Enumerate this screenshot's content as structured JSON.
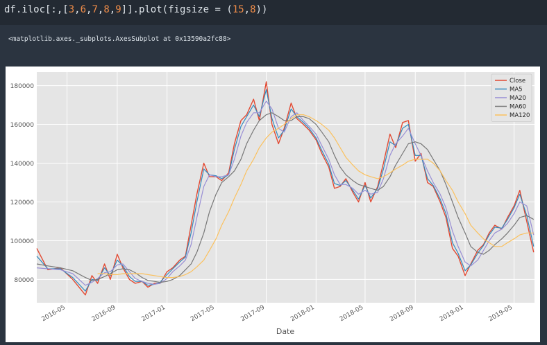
{
  "code_cell": {
    "prefix": "df.iloc[:,[",
    "numbers": [
      "3",
      "6",
      "7",
      "8",
      "9"
    ],
    "middle": "]].plot(figsize = (",
    "fig_w": "15",
    "fig_h": "8",
    "suffix": "))"
  },
  "output": {
    "repr": "<matplotlib.axes._subplots.AxesSubplot at 0x13590a2fc88>"
  },
  "colors": {
    "Close": "#e24a33",
    "MA5": "#348abd",
    "MA20": "#988ed5",
    "MA60": "#777777",
    "MA120": "#fbc15e",
    "axes_bg": "#e5e5e5",
    "grid": "#ffffff",
    "tick_text": "#555555"
  },
  "chart_data": {
    "type": "line",
    "xlabel": "Date",
    "ylabel": "",
    "x_ticks": [
      "2016-05",
      "2016-09",
      "2017-01",
      "2017-05",
      "2017-09",
      "2018-01",
      "2018-05",
      "2018-09",
      "2019-01",
      "2019-05"
    ],
    "xlim": [
      "2016-02-17",
      "2019-06-20"
    ],
    "y_ticks": [
      80000,
      100000,
      120000,
      140000,
      160000,
      180000
    ],
    "y_tick_labels": [
      "80000",
      "100000",
      "120000",
      "140000",
      "160000",
      "180000"
    ],
    "ylim": [
      68000,
      187000
    ],
    "grid": true,
    "legend_position": "top-right",
    "legend": [
      "Close",
      "MA5",
      "MA20",
      "MA60",
      "MA120"
    ],
    "x": [
      "2016-02-17",
      "2016-03-15",
      "2016-04-15",
      "2016-05-15",
      "2016-06-15",
      "2016-07-01",
      "2016-07-15",
      "2016-08-01",
      "2016-08-15",
      "2016-09-01",
      "2016-09-15",
      "2016-10-01",
      "2016-10-15",
      "2016-11-01",
      "2016-11-15",
      "2016-12-01",
      "2016-12-15",
      "2017-01-01",
      "2017-01-15",
      "2017-02-01",
      "2017-02-15",
      "2017-03-01",
      "2017-03-15",
      "2017-04-01",
      "2017-04-15",
      "2017-05-01",
      "2017-05-15",
      "2017-06-01",
      "2017-06-15",
      "2017-07-01",
      "2017-07-15",
      "2017-08-01",
      "2017-08-15",
      "2017-09-01",
      "2017-09-15",
      "2017-10-01",
      "2017-10-15",
      "2017-11-01",
      "2017-11-15",
      "2017-12-01",
      "2017-12-15",
      "2018-01-01",
      "2018-01-15",
      "2018-02-01",
      "2018-02-15",
      "2018-03-01",
      "2018-03-15",
      "2018-04-01",
      "2018-04-15",
      "2018-05-01",
      "2018-05-15",
      "2018-06-01",
      "2018-06-15",
      "2018-07-01",
      "2018-07-15",
      "2018-08-01",
      "2018-08-15",
      "2018-09-01",
      "2018-09-15",
      "2018-10-01",
      "2018-10-15",
      "2018-11-01",
      "2018-11-15",
      "2018-12-01",
      "2018-12-15",
      "2019-01-01",
      "2019-01-15",
      "2019-02-01",
      "2019-02-15",
      "2019-03-01",
      "2019-03-15",
      "2019-04-01",
      "2019-04-15",
      "2019-05-01",
      "2019-05-15",
      "2019-06-01",
      "2019-06-18"
    ],
    "series": [
      {
        "name": "Close",
        "values": [
          96000,
          85000,
          86000,
          80000,
          72000,
          82000,
          78000,
          88000,
          80000,
          93000,
          86000,
          80000,
          78000,
          79000,
          76000,
          78000,
          78000,
          84000,
          86000,
          90000,
          92000,
          108000,
          124000,
          140000,
          133000,
          133000,
          131000,
          135000,
          150000,
          162000,
          165000,
          173000,
          162000,
          182000,
          160000,
          150000,
          158000,
          171000,
          163000,
          160000,
          157000,
          152000,
          145000,
          138000,
          127000,
          128000,
          132000,
          125000,
          120000,
          130000,
          120000,
          128000,
          140000,
          155000,
          148000,
          161000,
          162000,
          141000,
          145000,
          130000,
          128000,
          120000,
          112000,
          96000,
          92000,
          82000,
          88000,
          95000,
          98000,
          104000,
          108000,
          106000,
          112000,
          118000,
          126000,
          110000,
          94000
        ]
      },
      {
        "name": "MA5",
        "values": [
          92000,
          85500,
          85500,
          81000,
          74000,
          80000,
          79500,
          86000,
          82000,
          90000,
          87000,
          81500,
          79000,
          79000,
          77000,
          77500,
          78500,
          82500,
          85500,
          89000,
          91500,
          104000,
          120000,
          137000,
          134000,
          133500,
          132000,
          134000,
          147000,
          159000,
          164000,
          170000,
          164000,
          178000,
          163000,
          153000,
          157000,
          168000,
          164000,
          161000,
          158000,
          153000,
          146500,
          139500,
          129500,
          128500,
          131000,
          126000,
          121500,
          128500,
          122000,
          127000,
          137000,
          151000,
          149000,
          158000,
          160000,
          144000,
          144000,
          132000,
          128500,
          121500,
          114000,
          99000,
          93500,
          84500,
          87500,
          93500,
          97500,
          103000,
          107000,
          106500,
          111000,
          117000,
          124000,
          113000,
          97000
        ]
      },
      {
        "name": "MA20",
        "values": [
          86000,
          85500,
          85000,
          83000,
          77000,
          78500,
          80500,
          83500,
          84000,
          87500,
          88000,
          84000,
          80500,
          79000,
          78000,
          77500,
          78000,
          80500,
          84000,
          87000,
          90000,
          98000,
          112000,
          128000,
          134000,
          133000,
          133000,
          134000,
          142000,
          154000,
          161000,
          166000,
          166000,
          172000,
          168000,
          158000,
          156000,
          164000,
          166000,
          162000,
          159000,
          155000,
          149000,
          142000,
          134000,
          129000,
          129000,
          127000,
          124000,
          126000,
          124000,
          125000,
          132000,
          144000,
          150000,
          154000,
          158000,
          150000,
          144000,
          136000,
          130000,
          124000,
          117000,
          105000,
          97000,
          89000,
          87000,
          90000,
          95000,
          100000,
          104000,
          106000,
          109000,
          114000,
          120000,
          118000,
          103000
        ]
      },
      {
        "name": "MA60",
        "values": [
          88000,
          87000,
          86000,
          84500,
          81000,
          79500,
          80000,
          81500,
          83000,
          85000,
          85500,
          85000,
          83500,
          81000,
          79500,
          79000,
          78500,
          79000,
          80000,
          82000,
          85000,
          88000,
          94000,
          104000,
          115000,
          124000,
          130000,
          133000,
          136000,
          142000,
          150000,
          157000,
          162000,
          165000,
          166000,
          164000,
          162000,
          162000,
          164000,
          164000,
          163000,
          160000,
          156000,
          151000,
          144000,
          138000,
          134000,
          131000,
          129000,
          128000,
          127000,
          126000,
          128000,
          133000,
          139000,
          145000,
          150000,
          151000,
          150000,
          147000,
          142000,
          136000,
          129000,
          120000,
          112000,
          104000,
          97000,
          94000,
          93000,
          95000,
          98000,
          101000,
          104000,
          108000,
          112000,
          113000,
          111000
        ]
      },
      {
        "name": "MA120",
        "values": [
          null,
          null,
          null,
          null,
          null,
          null,
          83000,
          83000,
          82500,
          82500,
          83000,
          83000,
          83000,
          83000,
          82500,
          82000,
          81500,
          81000,
          81000,
          81500,
          82500,
          84000,
          86500,
          90000,
          95000,
          101000,
          108000,
          115000,
          122000,
          129000,
          136000,
          142000,
          148000,
          153000,
          156000,
          158000,
          160000,
          163000,
          165000,
          165000,
          164000,
          162000,
          160000,
          157000,
          153000,
          148000,
          143000,
          139000,
          136000,
          134000,
          133000,
          132000,
          133000,
          135000,
          137000,
          139000,
          141000,
          142000,
          142000,
          142000,
          140000,
          136000,
          131000,
          126000,
          120000,
          114000,
          108000,
          104000,
          101000,
          99000,
          97000,
          97000,
          99000,
          101000,
          103000,
          104000,
          104000
        ]
      }
    ]
  }
}
